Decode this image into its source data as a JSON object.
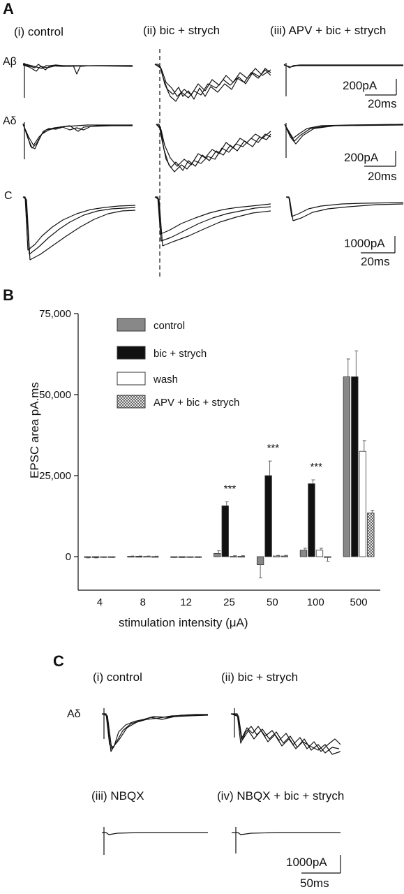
{
  "panel_a": {
    "label": "A",
    "conditions": [
      "(i) control",
      "(ii) bic + strych",
      "(iii) APV + bic + strych"
    ],
    "rows": [
      "Aβ",
      "Aδ",
      "C"
    ],
    "scale_bars": [
      {
        "current": "200pA",
        "time": "20ms"
      },
      {
        "current": "200pA",
        "time": "20ms"
      },
      {
        "current": "1000pA",
        "time": "20ms"
      }
    ]
  },
  "panel_b": {
    "label": "B"
  },
  "panel_c": {
    "label": "C",
    "conditions": [
      "(i) control",
      "(ii) bic + strych",
      "(iii) NBQX",
      "(iv) NBQX + bic + strych"
    ],
    "row": "Aδ",
    "scale_bar": {
      "current": "1000pA",
      "time": "50ms"
    }
  },
  "chart_data": {
    "type": "bar",
    "ylabel": "EPSC area pA.ms",
    "xlabel": "stimulation intensity (μA)",
    "categories": [
      "4",
      "8",
      "12",
      "25",
      "50",
      "100",
      "500"
    ],
    "ylim": [
      -10000,
      75000
    ],
    "yticks": [
      "0",
      "25,000",
      "50,000",
      "75,000"
    ],
    "ytick_values": [
      0,
      25000,
      50000,
      75000
    ],
    "legend_position": "top-left",
    "series": [
      {
        "name": "control",
        "fill": "#888888",
        "values": [
          -200,
          100,
          -100,
          1000,
          -2500,
          2000,
          55500
        ],
        "errors": [
          200,
          100,
          200,
          800,
          4000,
          600,
          5500
        ]
      },
      {
        "name": "bic + strych",
        "fill": "#111111",
        "values": [
          -200,
          100,
          -100,
          15700,
          25000,
          22500,
          55500
        ],
        "errors": [
          200,
          100,
          200,
          1200,
          4500,
          1200,
          8000
        ]
      },
      {
        "name": "wash",
        "fill": "#ffffff",
        "values": [
          -100,
          100,
          -100,
          100,
          200,
          2000,
          32500
        ],
        "errors": [
          200,
          100,
          200,
          200,
          200,
          600,
          3300
        ]
      },
      {
        "name": "APV + bic + strych",
        "fill": "hatch",
        "values": [
          -100,
          50,
          -100,
          100,
          200,
          -200,
          13500
        ],
        "errors": [
          200,
          100,
          200,
          200,
          200,
          1200,
          800
        ]
      }
    ],
    "annotations": [
      {
        "category": "25",
        "text": "***"
      },
      {
        "category": "50",
        "text": "***"
      },
      {
        "category": "100",
        "text": "***"
      }
    ]
  }
}
